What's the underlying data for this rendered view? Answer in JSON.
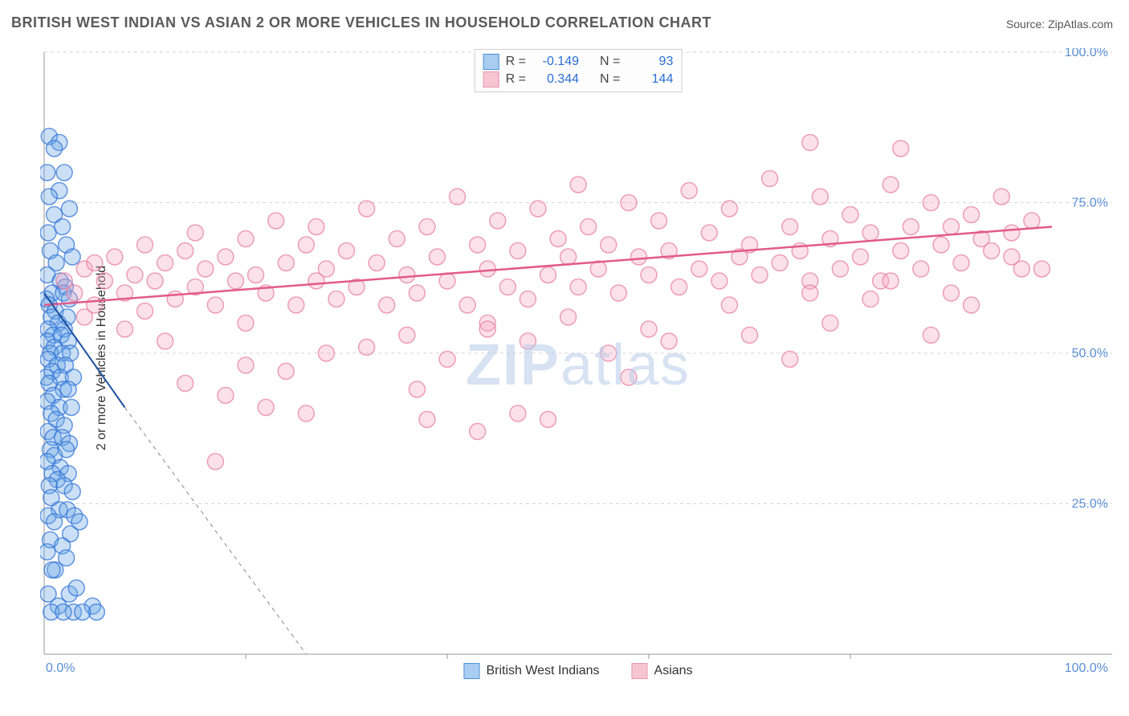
{
  "title": "BRITISH WEST INDIAN VS ASIAN 2 OR MORE VEHICLES IN HOUSEHOLD CORRELATION CHART",
  "source_label": "Source: ",
  "source_value": "ZipAtlas.com",
  "ylabel": "2 or more Vehicles in Household",
  "watermark": {
    "bold": "ZIP",
    "light": "atlas"
  },
  "chart": {
    "type": "scatter",
    "background_color": "#ffffff",
    "grid_color": "#d5d5d5",
    "axis_color": "#9a9a9a",
    "tick_font_color": "#5a8fd6",
    "tick_fontsize": 16,
    "xlim": [
      0,
      100
    ],
    "ylim": [
      0,
      100
    ],
    "xticks": [
      0,
      100
    ],
    "xtick_labels": [
      "0.0%",
      "100.0%"
    ],
    "xminor_ticks": [
      20,
      40,
      60,
      80
    ],
    "yticks": [
      25,
      50,
      75,
      100
    ],
    "ytick_labels": [
      "25.0%",
      "50.0%",
      "75.0%",
      "100.0%"
    ],
    "marker_radius": 10,
    "marker_stroke_width": 1.5,
    "marker_fill_opacity": 0.35
  },
  "stats_legend": [
    {
      "swatch_fill": "#a9cdf1",
      "swatch_stroke": "#4a8fd6",
      "r_label": "R =",
      "r_value": "-0.149",
      "n_label": "N =",
      "n_value": "93"
    },
    {
      "swatch_fill": "#f6c4d3",
      "swatch_stroke": "#e796b3",
      "r_label": "R =",
      "r_value": "0.344",
      "n_label": "N =",
      "n_value": "144"
    }
  ],
  "legend_bottom": [
    {
      "swatch_fill": "#a9cdf1",
      "swatch_stroke": "#4a8fd6",
      "label": "British West Indians"
    },
    {
      "swatch_fill": "#f6c4d3",
      "swatch_stroke": "#e796b3",
      "label": "Asians"
    }
  ],
  "series": {
    "blue": {
      "stroke": "#2a6ed6",
      "fill": "#6aa6e6",
      "trend": {
        "x1": 0,
        "y1": 60,
        "x2": 8,
        "y2": 41,
        "ext_x2": 26,
        "ext_y2": -2,
        "color": "#1e4fa0",
        "width": 2,
        "dash_ext": "5,5",
        "dash_ext_color": "#888888"
      },
      "points": [
        [
          0.5,
          86
        ],
        [
          1.5,
          85
        ],
        [
          1,
          84
        ],
        [
          0.3,
          80
        ],
        [
          2,
          80
        ],
        [
          1.5,
          77
        ],
        [
          0.5,
          76
        ],
        [
          2.5,
          74
        ],
        [
          1,
          73
        ],
        [
          0.4,
          70
        ],
        [
          1.8,
          71
        ],
        [
          2.2,
          68
        ],
        [
          0.6,
          67
        ],
        [
          1.2,
          65
        ],
        [
          2.8,
          66
        ],
        [
          0.3,
          63
        ],
        [
          1.6,
          62
        ],
        [
          2.1,
          61
        ],
        [
          0.8,
          60
        ],
        [
          0.2,
          59
        ],
        [
          1.9,
          60
        ],
        [
          2.5,
          59
        ],
        [
          0.5,
          58
        ],
        [
          1.1,
          57
        ],
        [
          0.7,
          56
        ],
        [
          2.3,
          56
        ],
        [
          1.4,
          55
        ],
        [
          0.4,
          54
        ],
        [
          2.0,
          54
        ],
        [
          0.9,
          53
        ],
        [
          1.7,
          53
        ],
        [
          0.3,
          52
        ],
        [
          2.4,
          52
        ],
        [
          1.0,
          51
        ],
        [
          0.6,
          50
        ],
        [
          1.8,
          50
        ],
        [
          2.6,
          50
        ],
        [
          0.4,
          49
        ],
        [
          1.3,
          48
        ],
        [
          2.1,
          48
        ],
        [
          0.8,
          47
        ],
        [
          0.2,
          46
        ],
        [
          1.6,
          46
        ],
        [
          2.9,
          46
        ],
        [
          0.5,
          45
        ],
        [
          1.9,
          44
        ],
        [
          2.4,
          44
        ],
        [
          0.9,
          43
        ],
        [
          0.3,
          42
        ],
        [
          1.5,
          41
        ],
        [
          2.7,
          41
        ],
        [
          0.7,
          40
        ],
        [
          1.2,
          39
        ],
        [
          2.0,
          38
        ],
        [
          0.4,
          37
        ],
        [
          0.9,
          36
        ],
        [
          1.8,
          36
        ],
        [
          2.5,
          35
        ],
        [
          0.6,
          34
        ],
        [
          2.2,
          34
        ],
        [
          1.0,
          33
        ],
        [
          0.3,
          32
        ],
        [
          1.6,
          31
        ],
        [
          0.8,
          30
        ],
        [
          2.4,
          30
        ],
        [
          1.3,
          29
        ],
        [
          0.5,
          28
        ],
        [
          2.0,
          28
        ],
        [
          2.8,
          27
        ],
        [
          0.7,
          26
        ],
        [
          1.5,
          24
        ],
        [
          2.3,
          24
        ],
        [
          0.4,
          23
        ],
        [
          3.0,
          23
        ],
        [
          1.0,
          22
        ],
        [
          2.6,
          20
        ],
        [
          0.6,
          19
        ],
        [
          1.8,
          18
        ],
        [
          3.5,
          22
        ],
        [
          0.3,
          17
        ],
        [
          2.2,
          16
        ],
        [
          1.1,
          14
        ],
        [
          0.8,
          14
        ],
        [
          2.5,
          10
        ],
        [
          0.4,
          10
        ],
        [
          3.2,
          11
        ],
        [
          1.4,
          8
        ],
        [
          0.7,
          7
        ],
        [
          2.9,
          7
        ],
        [
          4.8,
          8
        ],
        [
          1.9,
          7
        ],
        [
          5.2,
          7
        ],
        [
          3.8,
          7
        ]
      ]
    },
    "pink": {
      "stroke": "#e57aa0",
      "fill": "#f5a8c2",
      "trend": {
        "x1": 0,
        "y1": 58,
        "x2": 100,
        "y2": 71,
        "color": "#e25a8a",
        "width": 2.5
      },
      "points": [
        [
          2,
          62
        ],
        [
          3,
          60
        ],
        [
          4,
          64
        ],
        [
          5,
          65
        ],
        [
          5,
          58
        ],
        [
          6,
          62
        ],
        [
          7,
          66
        ],
        [
          8,
          60
        ],
        [
          9,
          63
        ],
        [
          10,
          68
        ],
        [
          10,
          57
        ],
        [
          11,
          62
        ],
        [
          12,
          65
        ],
        [
          13,
          59
        ],
        [
          14,
          67
        ],
        [
          15,
          61
        ],
        [
          15,
          70
        ],
        [
          16,
          64
        ],
        [
          17,
          58
        ],
        [
          18,
          66
        ],
        [
          19,
          62
        ],
        [
          20,
          69
        ],
        [
          20,
          55
        ],
        [
          21,
          63
        ],
        [
          22,
          60
        ],
        [
          23,
          72
        ],
        [
          24,
          65
        ],
        [
          25,
          58
        ],
        [
          26,
          68
        ],
        [
          27,
          62
        ],
        [
          27,
          71
        ],
        [
          28,
          64
        ],
        [
          29,
          59
        ],
        [
          30,
          67
        ],
        [
          31,
          61
        ],
        [
          32,
          74
        ],
        [
          33,
          65
        ],
        [
          34,
          58
        ],
        [
          17,
          32
        ],
        [
          35,
          69
        ],
        [
          36,
          63
        ],
        [
          37,
          60
        ],
        [
          37,
          44
        ],
        [
          38,
          71
        ],
        [
          39,
          66
        ],
        [
          40,
          62
        ],
        [
          41,
          76
        ],
        [
          42,
          58
        ],
        [
          43,
          68
        ],
        [
          44,
          64
        ],
        [
          44,
          55
        ],
        [
          45,
          72
        ],
        [
          46,
          61
        ],
        [
          47,
          67
        ],
        [
          48,
          59
        ],
        [
          38,
          39
        ],
        [
          49,
          74
        ],
        [
          50,
          63
        ],
        [
          51,
          69
        ],
        [
          43,
          37
        ],
        [
          52,
          66
        ],
        [
          53,
          61
        ],
        [
          53,
          78
        ],
        [
          54,
          71
        ],
        [
          55,
          64
        ],
        [
          56,
          68
        ],
        [
          47,
          40
        ],
        [
          57,
          60
        ],
        [
          58,
          75
        ],
        [
          59,
          66
        ],
        [
          60,
          63
        ],
        [
          50,
          39
        ],
        [
          61,
          72
        ],
        [
          62,
          67
        ],
        [
          63,
          61
        ],
        [
          64,
          77
        ],
        [
          65,
          64
        ],
        [
          66,
          70
        ],
        [
          67,
          62
        ],
        [
          68,
          74
        ],
        [
          58,
          46
        ],
        [
          69,
          66
        ],
        [
          70,
          68
        ],
        [
          71,
          63
        ],
        [
          72,
          79
        ],
        [
          73,
          65
        ],
        [
          74,
          71
        ],
        [
          75,
          67
        ],
        [
          76,
          62
        ],
        [
          77,
          76
        ],
        [
          78,
          69
        ],
        [
          79,
          64
        ],
        [
          80,
          73
        ],
        [
          81,
          66
        ],
        [
          82,
          70
        ],
        [
          83,
          62
        ],
        [
          76,
          85
        ],
        [
          84,
          78
        ],
        [
          85,
          67
        ],
        [
          86,
          71
        ],
        [
          70,
          53
        ],
        [
          87,
          64
        ],
        [
          88,
          75
        ],
        [
          89,
          68
        ],
        [
          90,
          71
        ],
        [
          85,
          84
        ],
        [
          91,
          65
        ],
        [
          92,
          73
        ],
        [
          78,
          55
        ],
        [
          93,
          69
        ],
        [
          94,
          67
        ],
        [
          95,
          76
        ],
        [
          88,
          53
        ],
        [
          96,
          70
        ],
        [
          97,
          64
        ],
        [
          98,
          72
        ],
        [
          99,
          64
        ],
        [
          82,
          59
        ],
        [
          74,
          49
        ],
        [
          62,
          52
        ],
        [
          56,
          50
        ],
        [
          48,
          52
        ],
        [
          40,
          49
        ],
        [
          32,
          51
        ],
        [
          24,
          47
        ],
        [
          90,
          60
        ],
        [
          68,
          58
        ],
        [
          60,
          54
        ],
        [
          52,
          56
        ],
        [
          44,
          54
        ],
        [
          36,
          53
        ],
        [
          28,
          50
        ],
        [
          20,
          48
        ],
        [
          12,
          52
        ],
        [
          8,
          54
        ],
        [
          4,
          56
        ],
        [
          84,
          62
        ],
        [
          76,
          60
        ],
        [
          92,
          58
        ],
        [
          96,
          66
        ],
        [
          14,
          45
        ],
        [
          18,
          43
        ],
        [
          22,
          41
        ],
        [
          26,
          40
        ]
      ]
    }
  }
}
